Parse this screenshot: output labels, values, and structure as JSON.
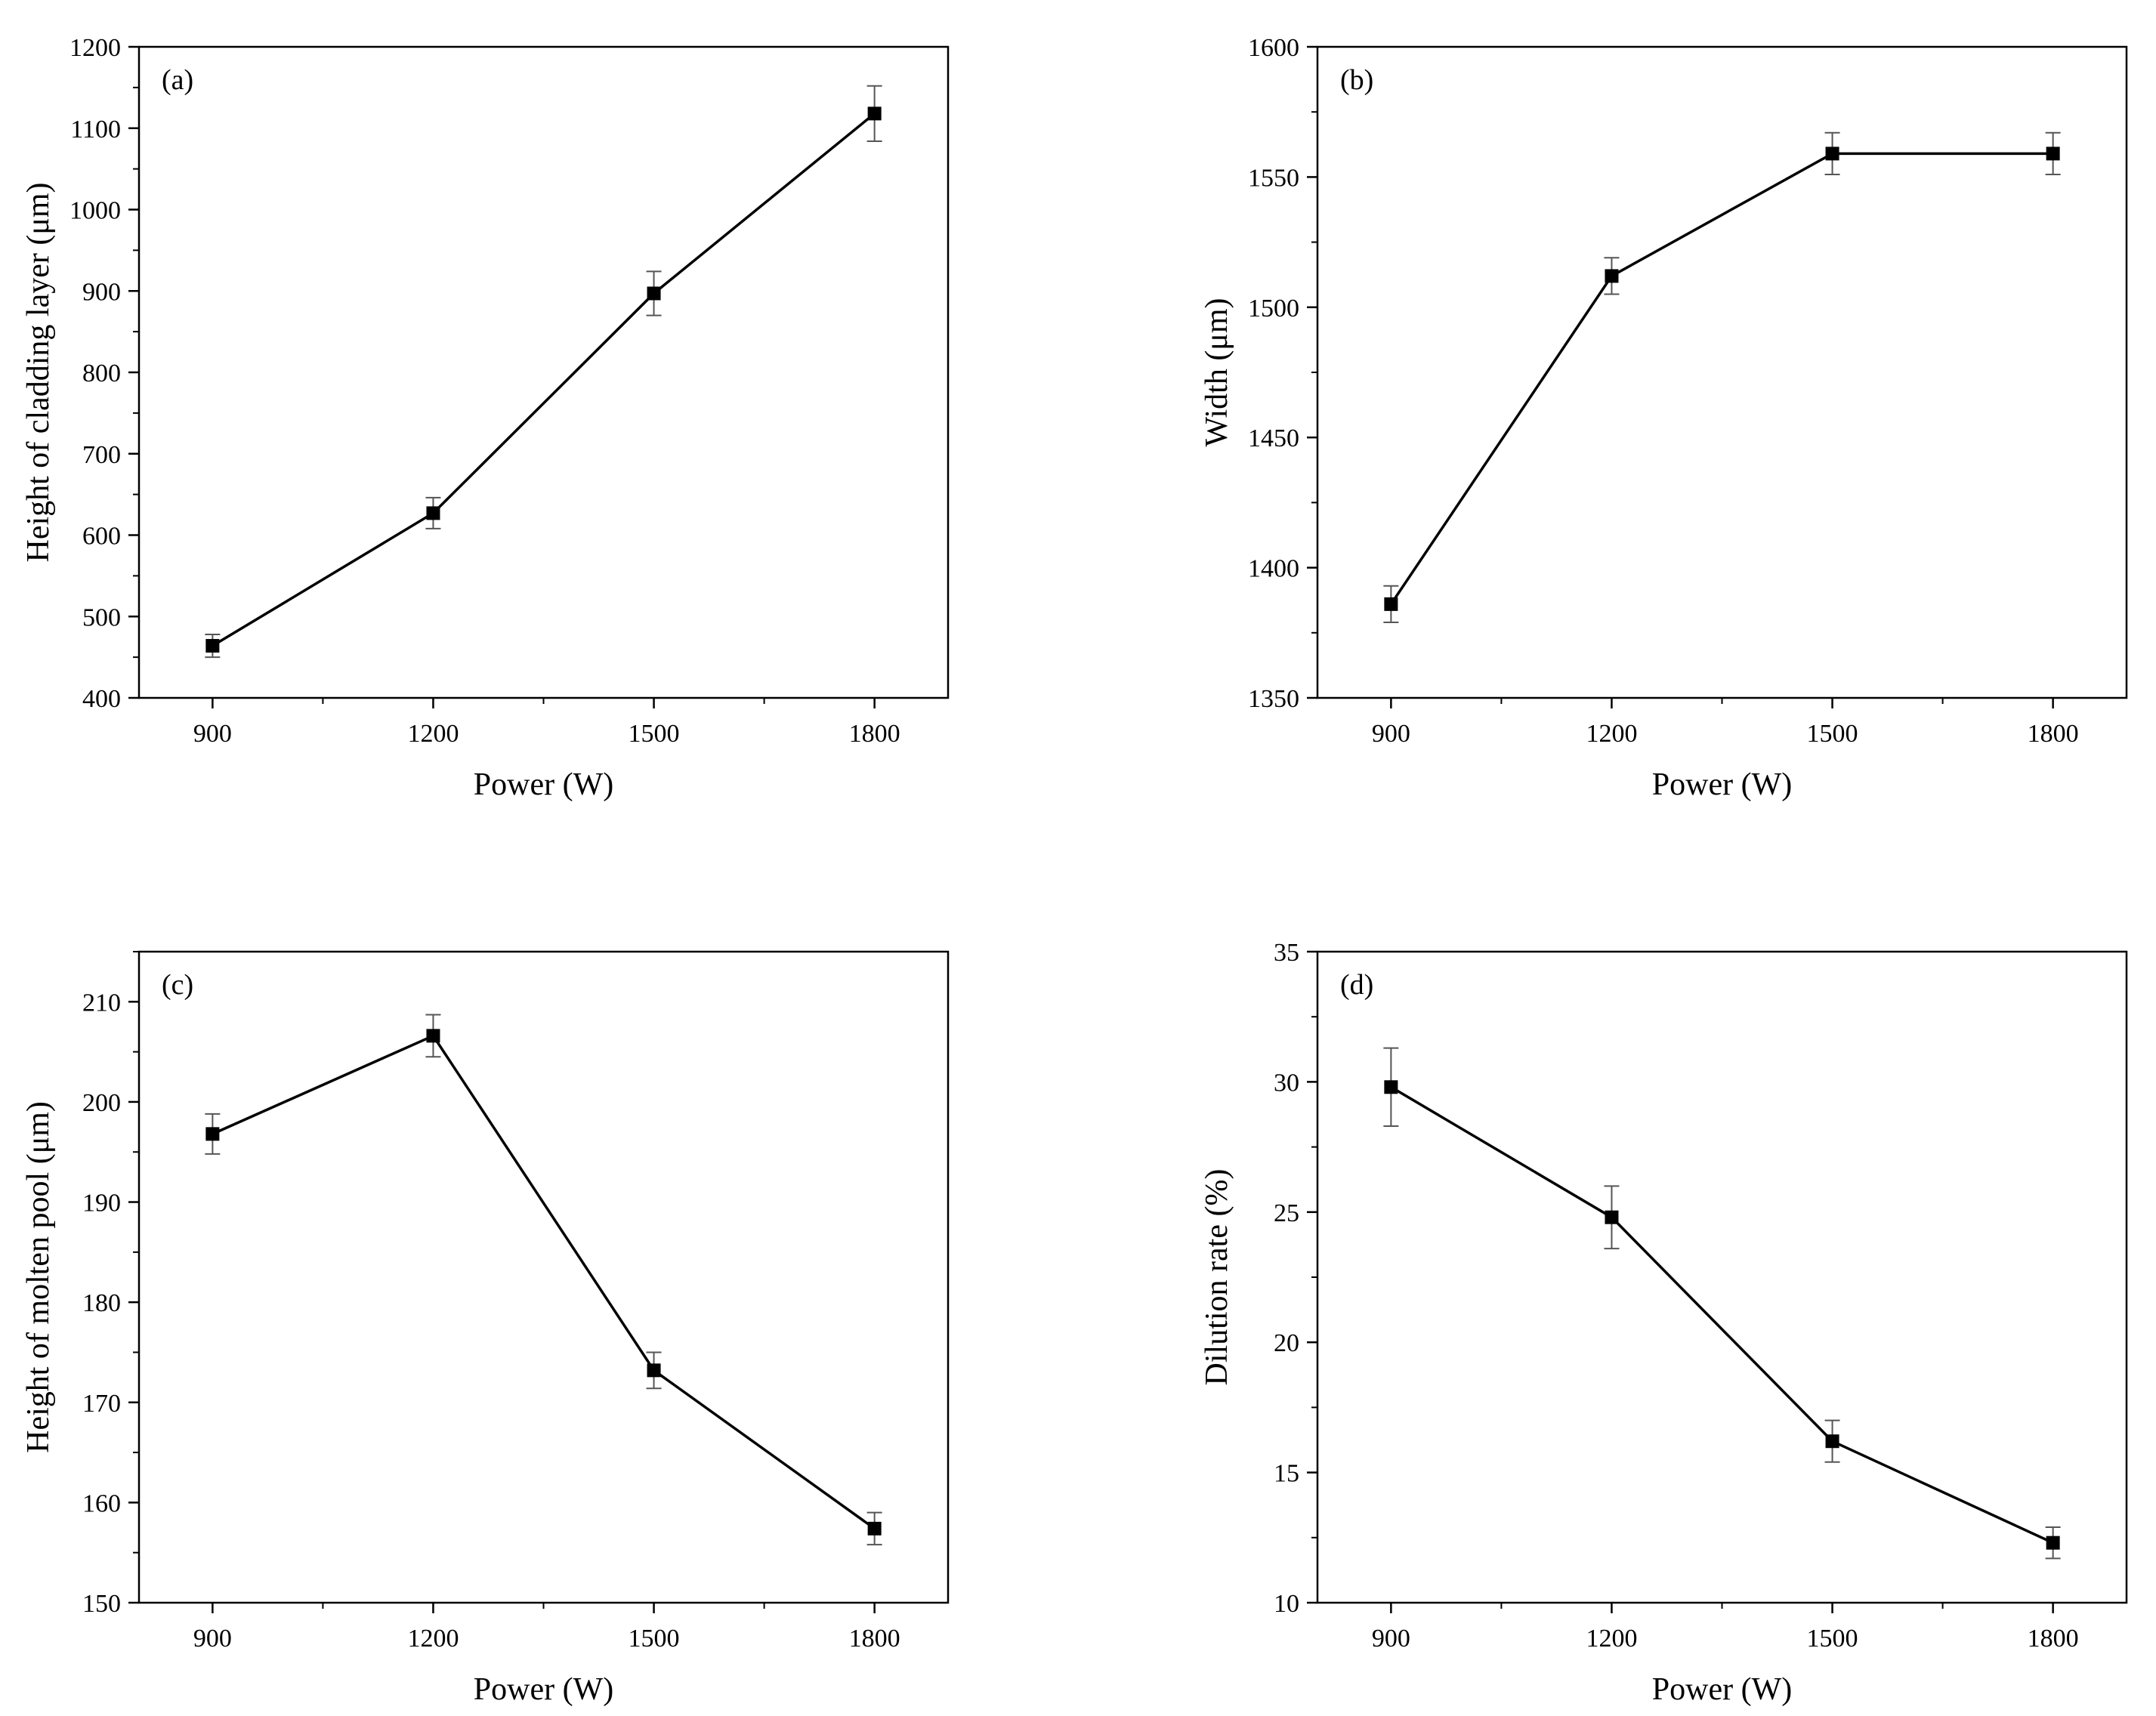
{
  "colors": {
    "line": "#000000",
    "marker": "#000000",
    "errorbar": "#555555",
    "background": "#ffffff"
  },
  "chart_data": [
    {
      "type": "line",
      "panel": "(a)",
      "xlabel": "Power (W)",
      "ylabel": "Height of cladding layer (μm)",
      "x": [
        900,
        1200,
        1500,
        1800
      ],
      "values": [
        464,
        627,
        897,
        1118
      ],
      "errors": [
        14,
        19,
        27,
        34
      ],
      "xlim": [
        800,
        1900
      ],
      "ylim": [
        400,
        1200
      ],
      "xticks": [
        900,
        1200,
        1500,
        1800
      ],
      "yticks": [
        400,
        500,
        600,
        700,
        800,
        900,
        1000,
        1100,
        1200
      ]
    },
    {
      "type": "line",
      "panel": "(b)",
      "xlabel": "Power (W)",
      "ylabel": "Width (μm)",
      "x": [
        900,
        1200,
        1500,
        1800
      ],
      "values": [
        1386,
        1512,
        1559,
        1559
      ],
      "errors": [
        7,
        7,
        8,
        8
      ],
      "xlim": [
        800,
        1900
      ],
      "ylim": [
        1350,
        1600
      ],
      "xticks": [
        900,
        1200,
        1500,
        1800
      ],
      "yticks": [
        1350,
        1400,
        1450,
        1500,
        1550,
        1600
      ]
    },
    {
      "type": "line",
      "panel": "(c)",
      "xlabel": "Power (W)",
      "ylabel": "Height of molten pool (μm)",
      "x": [
        900,
        1200,
        1500,
        1800
      ],
      "values": [
        196.8,
        206.6,
        173.2,
        157.4
      ],
      "errors": [
        2.0,
        2.1,
        1.8,
        1.6
      ],
      "xlim": [
        800,
        1900
      ],
      "ylim": [
        150,
        215
      ],
      "xticks": [
        900,
        1200,
        1500,
        1800
      ],
      "yticks": [
        150,
        160,
        170,
        180,
        190,
        200,
        210
      ]
    },
    {
      "type": "line",
      "panel": "(d)",
      "xlabel": "Power (W)",
      "ylabel": "Dilution rate (%)",
      "x": [
        900,
        1200,
        1500,
        1800
      ],
      "values": [
        29.8,
        24.8,
        16.2,
        12.3
      ],
      "errors": [
        1.5,
        1.2,
        0.8,
        0.6
      ],
      "xlim": [
        800,
        1900
      ],
      "ylim": [
        10,
        35
      ],
      "xticks": [
        900,
        1200,
        1500,
        1800
      ],
      "yticks": [
        10,
        15,
        20,
        25,
        30,
        35
      ]
    }
  ]
}
